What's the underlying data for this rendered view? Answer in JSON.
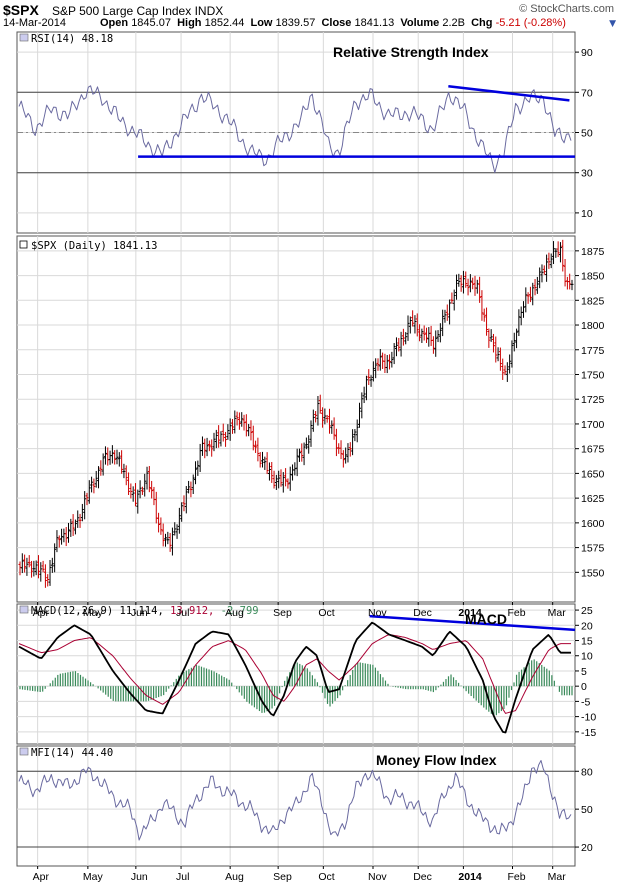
{
  "header": {
    "symbol": "$SPX",
    "name": "S&P 500 Large Cap Index",
    "exchange": "INDX",
    "date": "14-Mar-2014",
    "open_label": "Open",
    "open": "1845.07",
    "high_label": "High",
    "high": "1852.44",
    "low_label": "Low",
    "low": "1839.57",
    "close_label": "Close",
    "close": "1841.13",
    "volume_label": "Volume",
    "volume": "2.2B",
    "chg_label": "Chg",
    "chg": "-5.21 (-0.28%)",
    "brand": "© StockCharts.com",
    "dropdown_icon": "▼"
  },
  "colors": {
    "up": "#000000",
    "down": "#cc0000",
    "indicator_line": "#6a6aa0",
    "trendline": "#0000dd",
    "histogram": "#3a8a5a",
    "signal": "#aa0033",
    "grid": "#d9d9d9"
  },
  "x_axis": {
    "months": [
      {
        "label": "Apr",
        "pos": 0.037,
        "bold": false
      },
      {
        "label": "May",
        "pos": 0.127,
        "bold": false
      },
      {
        "label": "Jun",
        "pos": 0.213,
        "bold": false
      },
      {
        "label": "Jul",
        "pos": 0.294,
        "bold": false
      },
      {
        "label": "Aug",
        "pos": 0.382,
        "bold": false
      },
      {
        "label": "Sep",
        "pos": 0.468,
        "bold": false
      },
      {
        "label": "Oct",
        "pos": 0.549,
        "bold": false
      },
      {
        "label": "Nov",
        "pos": 0.638,
        "bold": false
      },
      {
        "label": "Dec",
        "pos": 0.719,
        "bold": false
      },
      {
        "label": "2014",
        "pos": 0.8,
        "bold": true
      },
      {
        "label": "Feb",
        "pos": 0.888,
        "bold": false
      },
      {
        "label": "Mar",
        "pos": 0.96,
        "bold": false
      }
    ]
  },
  "chart_data": [
    {
      "type": "line",
      "panel": "rsi",
      "legend": "RSI(14) 48.18",
      "annotation": "Relative Strength Index",
      "ylim": [
        0,
        100
      ],
      "ticks": [
        "90",
        "70",
        "50",
        "30",
        "10"
      ],
      "tick_values": [
        90,
        70,
        50,
        30,
        10
      ],
      "ref_lines": [
        70,
        30
      ],
      "mid_line": 50,
      "anchors": [
        [
          0,
          63
        ],
        [
          0.03,
          52
        ],
        [
          0.06,
          62
        ],
        [
          0.09,
          58
        ],
        [
          0.12,
          71
        ],
        [
          0.15,
          68
        ],
        [
          0.18,
          57
        ],
        [
          0.21,
          50
        ],
        [
          0.23,
          45
        ],
        [
          0.26,
          39
        ],
        [
          0.29,
          52
        ],
        [
          0.33,
          68
        ],
        [
          0.36,
          62
        ],
        [
          0.39,
          52
        ],
        [
          0.42,
          40
        ],
        [
          0.45,
          37
        ],
        [
          0.48,
          48
        ],
        [
          0.51,
          55
        ],
        [
          0.53,
          70
        ],
        [
          0.56,
          44
        ],
        [
          0.58,
          40
        ],
        [
          0.61,
          66
        ],
        [
          0.64,
          68
        ],
        [
          0.67,
          58
        ],
        [
          0.7,
          60
        ],
        [
          0.73,
          57
        ],
        [
          0.75,
          51
        ],
        [
          0.78,
          70
        ],
        [
          0.81,
          59
        ],
        [
          0.84,
          42
        ],
        [
          0.86,
          34
        ],
        [
          0.88,
          41
        ],
        [
          0.9,
          63
        ],
        [
          0.93,
          67
        ],
        [
          0.95,
          68
        ],
        [
          0.97,
          49
        ]
      ],
      "trendlines": [
        {
          "x1": 0.217,
          "y1": 38,
          "x2": 1.0,
          "y2": 38
        },
        {
          "x1": 0.773,
          "y1": 73,
          "x2": 0.99,
          "y2": 66
        }
      ]
    },
    {
      "type": "candlestick",
      "panel": "price",
      "legend": "$SPX (Daily) 1841.13",
      "ylim": [
        1520,
        1890
      ],
      "ticks": [
        "1875",
        "1850",
        "1825",
        "1800",
        "1775",
        "1750",
        "1725",
        "1700",
        "1675",
        "1650",
        "1625",
        "1600",
        "1575",
        "1550"
      ],
      "tick_values": [
        1875,
        1850,
        1825,
        1800,
        1775,
        1750,
        1725,
        1700,
        1675,
        1650,
        1625,
        1600,
        1575,
        1550
      ],
      "anchors": [
        [
          0,
          1555
        ],
        [
          0.02,
          1558
        ],
        [
          0.05,
          1545
        ],
        [
          0.07,
          1585
        ],
        [
          0.1,
          1597
        ],
        [
          0.12,
          1625
        ],
        [
          0.15,
          1662
        ],
        [
          0.17,
          1672
        ],
        [
          0.19,
          1648
        ],
        [
          0.21,
          1620
        ],
        [
          0.23,
          1650
        ],
        [
          0.25,
          1600
        ],
        [
          0.27,
          1575
        ],
        [
          0.29,
          1610
        ],
        [
          0.31,
          1640
        ],
        [
          0.33,
          1675
        ],
        [
          0.36,
          1685
        ],
        [
          0.38,
          1695
        ],
        [
          0.4,
          1708
        ],
        [
          0.42,
          1685
        ],
        [
          0.44,
          1660
        ],
        [
          0.46,
          1645
        ],
        [
          0.48,
          1640
        ],
        [
          0.5,
          1660
        ],
        [
          0.52,
          1682
        ],
        [
          0.54,
          1718
        ],
        [
          0.56,
          1700
        ],
        [
          0.58,
          1672
        ],
        [
          0.59,
          1663
        ],
        [
          0.61,
          1700
        ],
        [
          0.63,
          1747
        ],
        [
          0.65,
          1762
        ],
        [
          0.67,
          1764
        ],
        [
          0.69,
          1785
        ],
        [
          0.71,
          1804
        ],
        [
          0.73,
          1790
        ],
        [
          0.75,
          1782
        ],
        [
          0.77,
          1808
        ],
        [
          0.79,
          1840
        ],
        [
          0.81,
          1845
        ],
        [
          0.83,
          1835
        ],
        [
          0.85,
          1785
        ],
        [
          0.87,
          1765
        ],
        [
          0.88,
          1745
        ],
        [
          0.9,
          1800
        ],
        [
          0.92,
          1830
        ],
        [
          0.94,
          1845
        ],
        [
          0.96,
          1870
        ],
        [
          0.98,
          1875
        ],
        [
          0.99,
          1841
        ]
      ]
    },
    {
      "type": "line",
      "panel": "macd",
      "legend_prefix": "MACD(12,26,9)",
      "legend_macd": "11.114",
      "legend_signal": "13.912",
      "legend_hist": "-2.799",
      "annotation": "MACD",
      "ylim": [
        -19,
        27
      ],
      "ticks": [
        "25",
        "20",
        "15",
        "10",
        "5",
        "0",
        "-5",
        "-10",
        "-15"
      ],
      "tick_values": [
        25,
        20,
        15,
        10,
        5,
        0,
        -5,
        -10,
        -15
      ],
      "macd_anchors": [
        [
          0,
          13
        ],
        [
          0.04,
          9
        ],
        [
          0.07,
          16
        ],
        [
          0.1,
          20
        ],
        [
          0.13,
          17
        ],
        [
          0.17,
          5
        ],
        [
          0.2,
          -2
        ],
        [
          0.23,
          -8
        ],
        [
          0.26,
          -9
        ],
        [
          0.29,
          2
        ],
        [
          0.32,
          14
        ],
        [
          0.35,
          18
        ],
        [
          0.38,
          17
        ],
        [
          0.41,
          7
        ],
        [
          0.44,
          -5
        ],
        [
          0.46,
          -10
        ],
        [
          0.48,
          -3
        ],
        [
          0.5,
          8
        ],
        [
          0.52,
          13
        ],
        [
          0.54,
          10
        ],
        [
          0.56,
          -2
        ],
        [
          0.58,
          -1
        ],
        [
          0.61,
          15
        ],
        [
          0.64,
          21
        ],
        [
          0.67,
          17
        ],
        [
          0.7,
          15
        ],
        [
          0.73,
          13
        ],
        [
          0.75,
          10
        ],
        [
          0.78,
          18
        ],
        [
          0.81,
          13
        ],
        [
          0.84,
          2
        ],
        [
          0.86,
          -10
        ],
        [
          0.88,
          -16
        ],
        [
          0.9,
          -4
        ],
        [
          0.93,
          12
        ],
        [
          0.96,
          17
        ],
        [
          0.98,
          11
        ]
      ],
      "signal_anchors": [
        [
          0,
          14
        ],
        [
          0.04,
          11
        ],
        [
          0.07,
          12
        ],
        [
          0.1,
          15
        ],
        [
          0.13,
          16
        ],
        [
          0.17,
          10
        ],
        [
          0.2,
          3
        ],
        [
          0.23,
          -3
        ],
        [
          0.26,
          -6
        ],
        [
          0.29,
          -2
        ],
        [
          0.32,
          7
        ],
        [
          0.35,
          13
        ],
        [
          0.38,
          15
        ],
        [
          0.41,
          12
        ],
        [
          0.44,
          4
        ],
        [
          0.46,
          -3
        ],
        [
          0.48,
          -5
        ],
        [
          0.5,
          0
        ],
        [
          0.52,
          7
        ],
        [
          0.54,
          9
        ],
        [
          0.56,
          5
        ],
        [
          0.58,
          2
        ],
        [
          0.61,
          7
        ],
        [
          0.64,
          14
        ],
        [
          0.67,
          17
        ],
        [
          0.7,
          16
        ],
        [
          0.73,
          14
        ],
        [
          0.75,
          12
        ],
        [
          0.78,
          14
        ],
        [
          0.81,
          15
        ],
        [
          0.84,
          9
        ],
        [
          0.86,
          0
        ],
        [
          0.88,
          -9
        ],
        [
          0.9,
          -8
        ],
        [
          0.93,
          3
        ],
        [
          0.96,
          12
        ],
        [
          0.98,
          14
        ]
      ],
      "trendlines": [
        {
          "x1": 0.632,
          "y1": 23,
          "x2": 1.0,
          "y2": 18.5
        }
      ]
    },
    {
      "type": "line",
      "panel": "mfi",
      "legend": "MFI(14) 44.40",
      "annotation": "Money Flow Index",
      "ylim": [
        5,
        100
      ],
      "ticks": [
        "80",
        "50",
        "20"
      ],
      "tick_values": [
        80,
        50,
        20
      ],
      "ref_lines": [
        80,
        20
      ],
      "anchors": [
        [
          0,
          72
        ],
        [
          0.03,
          65
        ],
        [
          0.06,
          75
        ],
        [
          0.09,
          68
        ],
        [
          0.12,
          80
        ],
        [
          0.14,
          76
        ],
        [
          0.17,
          60
        ],
        [
          0.2,
          50
        ],
        [
          0.22,
          30
        ],
        [
          0.24,
          40
        ],
        [
          0.26,
          55
        ],
        [
          0.28,
          48
        ],
        [
          0.3,
          38
        ],
        [
          0.32,
          58
        ],
        [
          0.35,
          72
        ],
        [
          0.37,
          65
        ],
        [
          0.39,
          60
        ],
        [
          0.42,
          50
        ],
        [
          0.44,
          38
        ],
        [
          0.46,
          30
        ],
        [
          0.48,
          45
        ],
        [
          0.5,
          52
        ],
        [
          0.53,
          75
        ],
        [
          0.55,
          55
        ],
        [
          0.57,
          25
        ],
        [
          0.59,
          40
        ],
        [
          0.61,
          65
        ],
        [
          0.63,
          80
        ],
        [
          0.65,
          72
        ],
        [
          0.67,
          58
        ],
        [
          0.69,
          60
        ],
        [
          0.71,
          55
        ],
        [
          0.73,
          48
        ],
        [
          0.75,
          40
        ],
        [
          0.77,
          62
        ],
        [
          0.79,
          75
        ],
        [
          0.81,
          60
        ],
        [
          0.83,
          45
        ],
        [
          0.85,
          40
        ],
        [
          0.87,
          30
        ],
        [
          0.89,
          40
        ],
        [
          0.91,
          55
        ],
        [
          0.93,
          84
        ],
        [
          0.95,
          82
        ],
        [
          0.97,
          60
        ],
        [
          0.98,
          44
        ]
      ]
    }
  ]
}
